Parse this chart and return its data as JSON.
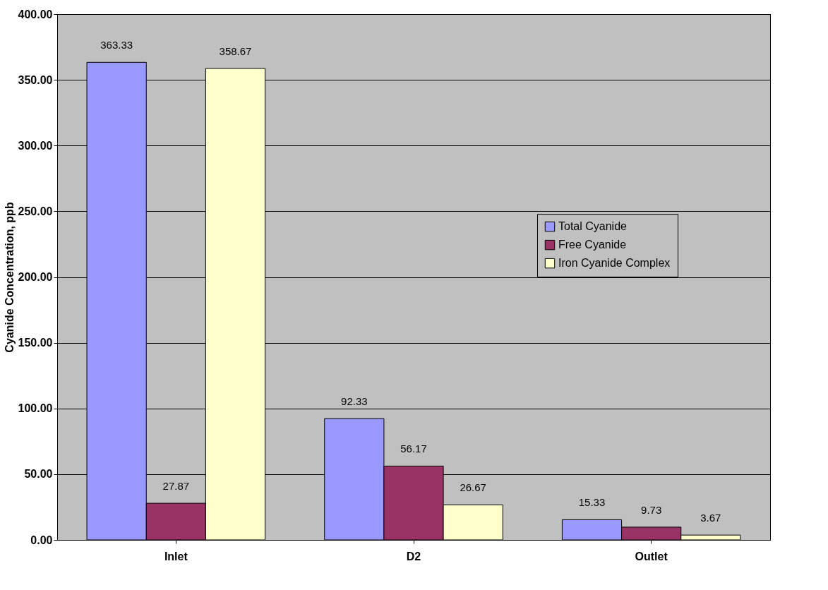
{
  "chart_data": {
    "type": "bar",
    "ylabel": "Cyanide Concentration, ppb",
    "categories": [
      "Inlet",
      "D2",
      "Outlet"
    ],
    "series": [
      {
        "name": "Total Cyanide",
        "color": "#9999ff",
        "values": [
          363.33,
          92.33,
          15.33
        ]
      },
      {
        "name": "Free Cyanide",
        "color": "#993366",
        "values": [
          27.87,
          56.17,
          9.73
        ]
      },
      {
        "name": "Iron Cyanide Complex",
        "color": "#ffffcc",
        "values": [
          358.67,
          26.67,
          3.67
        ]
      }
    ],
    "ylim": [
      0,
      400
    ],
    "yticks": [
      {
        "value": 0,
        "label": "0.00"
      },
      {
        "value": 50,
        "label": "50.00"
      },
      {
        "value": 100,
        "label": "100.00"
      },
      {
        "value": 150,
        "label": "150.00"
      },
      {
        "value": 200,
        "label": "200.00"
      },
      {
        "value": 250,
        "label": "250.00"
      },
      {
        "value": 300,
        "label": "300.00"
      },
      {
        "value": 350,
        "label": "350.00"
      },
      {
        "value": 400,
        "label": "400.00"
      }
    ],
    "grid": "y",
    "legend": "right",
    "data_labels": true
  }
}
